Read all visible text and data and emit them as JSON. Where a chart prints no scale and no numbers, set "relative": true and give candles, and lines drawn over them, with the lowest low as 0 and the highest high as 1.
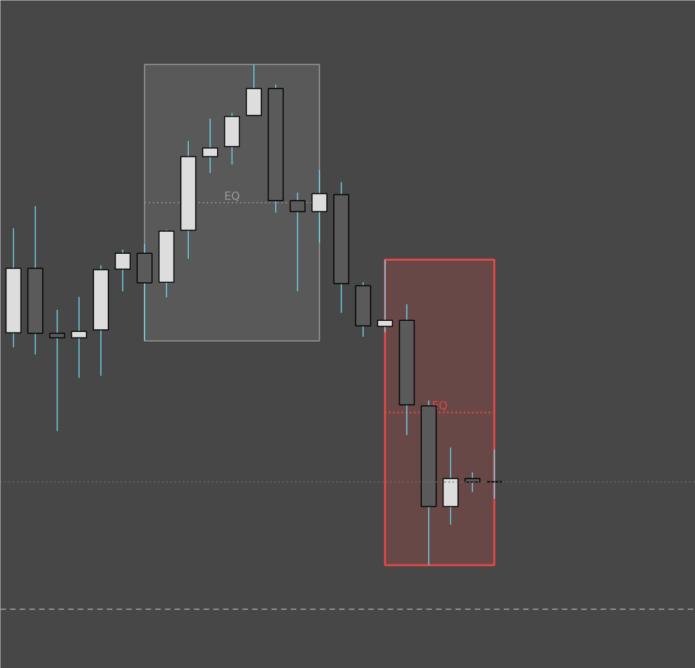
{
  "chart_data": {
    "type": "candlestick",
    "relative": true,
    "categories": [
      null,
      null,
      null,
      null,
      null,
      null,
      null,
      null,
      null,
      null,
      null,
      null,
      null,
      null,
      null,
      null,
      null,
      null,
      null,
      null,
      null,
      null,
      null
    ],
    "ohlc": [
      [
        0.464,
        0.673,
        0.435,
        0.593
      ],
      [
        0.593,
        0.717,
        0.421,
        0.463
      ],
      [
        0.463,
        0.51,
        0.268,
        0.454
      ],
      [
        0.454,
        0.536,
        0.374,
        0.467
      ],
      [
        0.47,
        0.599,
        0.378,
        0.59
      ],
      [
        0.591,
        0.63,
        0.547,
        0.623
      ],
      [
        0.623,
        0.642,
        0.448,
        0.564
      ],
      [
        0.565,
        0.67,
        0.535,
        0.667
      ],
      [
        0.669,
        0.847,
        0.612,
        0.816
      ],
      [
        0.816,
        0.892,
        0.783,
        0.833
      ],
      [
        0.836,
        0.903,
        0.8,
        0.896
      ],
      [
        0.898,
        1.0,
        0.898,
        0.952
      ],
      [
        0.952,
        0.96,
        0.704,
        0.728
      ],
      [
        0.728,
        0.744,
        0.547,
        0.706
      ],
      [
        0.706,
        0.789,
        0.644,
        0.742
      ],
      [
        0.74,
        0.765,
        0.504,
        0.562
      ],
      [
        0.558,
        0.565,
        0.456,
        0.478
      ],
      [
        0.477,
        0.61,
        0.465,
        0.489
      ],
      [
        0.489,
        0.521,
        0.26,
        0.32
      ],
      [
        0.318,
        0.329,
        0.0,
        0.117
      ],
      [
        0.117,
        0.235,
        0.081,
        0.173
      ],
      [
        0.173,
        0.185,
        0.146,
        0.166
      ],
      [
        0.167,
        0.231,
        0.133,
        0.166
      ]
    ],
    "colors": [
      "#dddddd",
      "#5a5a5a",
      "#5a5a5a",
      "#dddddd",
      "#dddddd",
      "#dddddd",
      "#5a5a5a",
      "#dddddd",
      "#dddddd",
      "#dddddd",
      "#dddddd",
      "#dddddd",
      "#5a5a5a",
      "#5a5a5a",
      "#dddddd",
      "#5a5a5a",
      "#5a5a5a",
      "#dddddd",
      "#5a5a5a",
      "#5a5a5a",
      "#dddddd",
      "#5a5a5a",
      "#5a5a5a"
    ],
    "bands": [
      {
        "axis": "y",
        "from": 0.448,
        "to": 1.0,
        "color": "#9a9a9a"
      },
      {
        "axis": "y",
        "from": 0.0,
        "to": 0.61,
        "color": "#e04848"
      }
    ],
    "ref_lines": [
      {
        "axis": "y",
        "value": 0.724,
        "label": "EQ",
        "color": "#9a9a9a",
        "line_style": "dotted"
      },
      {
        "axis": "y",
        "value": 0.305,
        "label": "EQ",
        "color": "#e04848",
        "line_style": "dotted"
      },
      {
        "axis": "y",
        "value": 0.166,
        "color": "#6e6e6e",
        "line_style": "dotted"
      },
      {
        "axis": "y",
        "value": -0.088,
        "color": "#aaaaaa",
        "line_style": "dashed"
      }
    ]
  }
}
